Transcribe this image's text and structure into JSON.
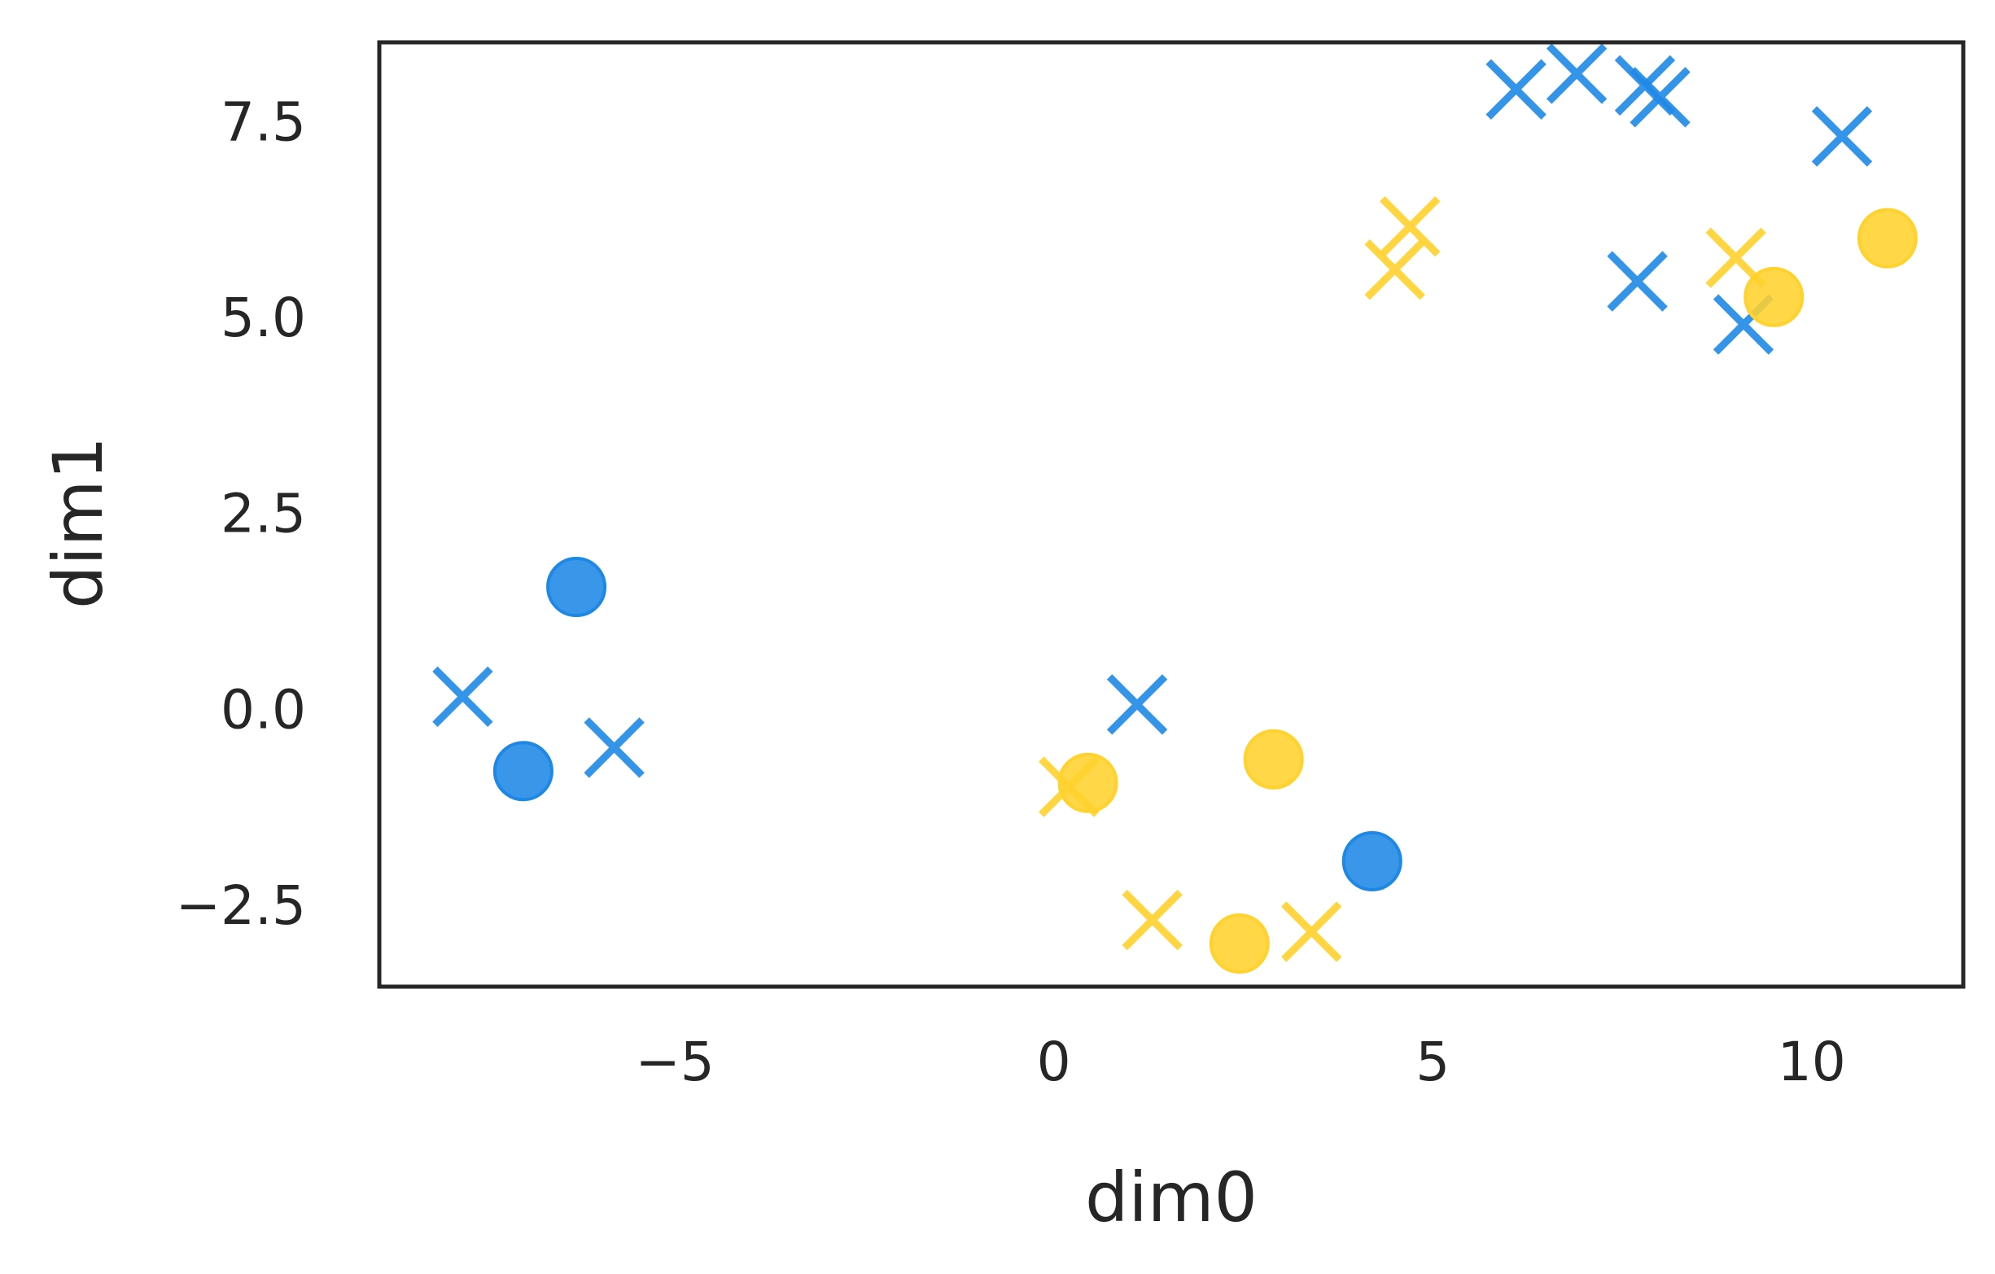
{
  "chart_data": {
    "type": "scatter",
    "title": "",
    "xlabel": "dim0",
    "ylabel": "dim1",
    "xlim": [
      -8.9,
      12.0
    ],
    "ylim": [
      -3.55,
      8.5
    ],
    "xticks": [
      -5,
      0,
      5,
      10
    ],
    "xtick_labels": [
      "−5",
      "0",
      "5",
      "10"
    ],
    "yticks": [
      -2.5,
      0.0,
      2.5,
      5.0,
      7.5
    ],
    "ytick_labels": [
      "−2.5",
      "0.0",
      "2.5",
      "5.0",
      "7.5"
    ],
    "grid": false,
    "legend": "none",
    "colors": {
      "blue": "#1e88e5",
      "yellow": "#ffd22e"
    },
    "series": [
      {
        "color": "blue",
        "marker": "x",
        "points": [
          [
            -7.8,
            0.15
          ],
          [
            -5.8,
            -0.5
          ],
          [
            1.1,
            0.05
          ],
          [
            6.1,
            7.9
          ],
          [
            6.9,
            8.1
          ],
          [
            7.8,
            7.95
          ],
          [
            8.0,
            7.8
          ],
          [
            7.7,
            5.45
          ],
          [
            9.1,
            4.9
          ],
          [
            10.4,
            7.3
          ]
        ]
      },
      {
        "color": "blue",
        "marker": "o",
        "points": [
          [
            -6.3,
            1.55
          ],
          [
            -7.0,
            -0.8
          ],
          [
            4.2,
            -1.95
          ]
        ]
      },
      {
        "color": "yellow",
        "marker": "x",
        "points": [
          [
            0.2,
            -1.0
          ],
          [
            1.3,
            -2.7
          ],
          [
            3.4,
            -2.85
          ],
          [
            4.5,
            5.6
          ],
          [
            4.7,
            6.15
          ],
          [
            9.0,
            5.75
          ]
        ]
      },
      {
        "color": "yellow",
        "marker": "o",
        "points": [
          [
            0.45,
            -0.95
          ],
          [
            2.9,
            -0.65
          ],
          [
            2.45,
            -3.0
          ],
          [
            9.5,
            5.25
          ],
          [
            11.0,
            6.0
          ]
        ]
      }
    ]
  }
}
